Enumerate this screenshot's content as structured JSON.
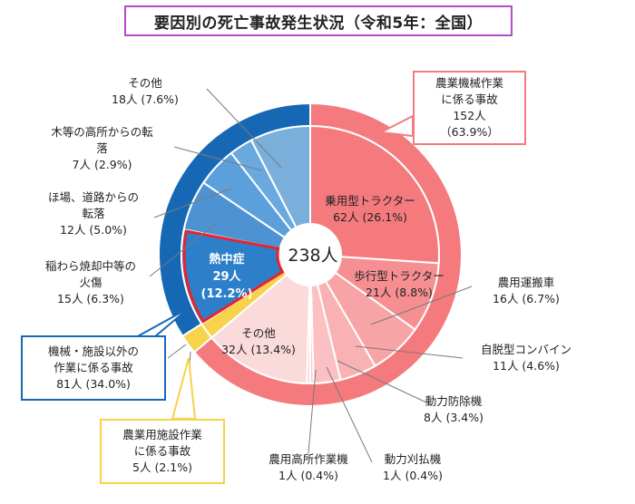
{
  "title": "要因別の死亡事故発生状況（令和5年：全国）",
  "total_label": "238人",
  "colors": {
    "agri_machine_outer": "#f47a7e",
    "tractor_riding": "#f47a7e",
    "tractor_walking": "#f68f92",
    "agri_other": "#fadadb",
    "agri_facility": "#f7d24a",
    "other_outer": "#1668b5",
    "heatstroke": "#2d7fca",
    "other_inner": "#7aafdc",
    "heat_border": "#e8232c"
  },
  "chart_data": [
    {
      "type": "pie",
      "ring": "outer",
      "categories": [
        "農業機械作業に係る事故",
        "農業用施設作業に係る事故",
        "機械・施設以外の作業に係る事故"
      ],
      "values": [
        152,
        5,
        81
      ],
      "percent": [
        63.9,
        2.1,
        34.0
      ]
    },
    {
      "type": "pie",
      "ring": "inner",
      "categories": [
        "乗用型トラクター",
        "歩行型トラクター",
        "農用運搬車",
        "自脱型コンバイン",
        "動力防除機",
        "動力刈払機",
        "農用高所作業機",
        "その他",
        "熱中症",
        "稲わら焼却中等の火傷",
        "ほ場、道路からの転落",
        "木等の高所からの転落",
        "その他"
      ],
      "values": [
        62,
        21,
        16,
        11,
        8,
        1,
        1,
        32,
        29,
        15,
        12,
        7,
        18
      ],
      "percent": [
        26.1,
        8.8,
        6.7,
        4.6,
        3.4,
        0.4,
        0.4,
        13.4,
        12.2,
        6.3,
        5.0,
        2.9,
        7.6
      ]
    }
  ],
  "labels": {
    "agri_machine": [
      "農業機械作業",
      "に係る事故",
      "152人",
      "（63.9%）"
    ],
    "agri_facility": [
      "農業用施設作業",
      "に係る事故",
      "5人 (2.1%)"
    ],
    "non_machine": [
      "機械・施設以外の",
      "作業に係る事故",
      "81人 (34.0%)"
    ],
    "riding": [
      "乗用型トラクター",
      "62人 (26.1%)"
    ],
    "walking": [
      "歩行型トラクター",
      "21人 (8.8%)"
    ],
    "transport": [
      "農用運搬車",
      "16人 (6.7%)"
    ],
    "combine": [
      "自脱型コンバイン",
      "11人 (4.6%)"
    ],
    "sprayer": [
      "動力防除機",
      "8人 (3.4%)"
    ],
    "brush": [
      "動力刈払機",
      "1人 (0.4%)"
    ],
    "aerial": [
      "農用高所作業機",
      "1人 (0.4%)"
    ],
    "agri_other": [
      "その他",
      "32人 (13.4%)"
    ],
    "heat": [
      "熱中症",
      "29人",
      "(12.2%)"
    ],
    "burn": [
      "稲わら焼却中等の",
      "火傷",
      "15人 (6.3%)"
    ],
    "field_fall": [
      "ほ場、道路からの",
      "転落",
      "12人 (5.0%)"
    ],
    "tree_fall": [
      "木等の高所からの転",
      "落",
      "7人 (2.9%)"
    ],
    "other": [
      "その他",
      "18人 (7.6%)"
    ]
  }
}
